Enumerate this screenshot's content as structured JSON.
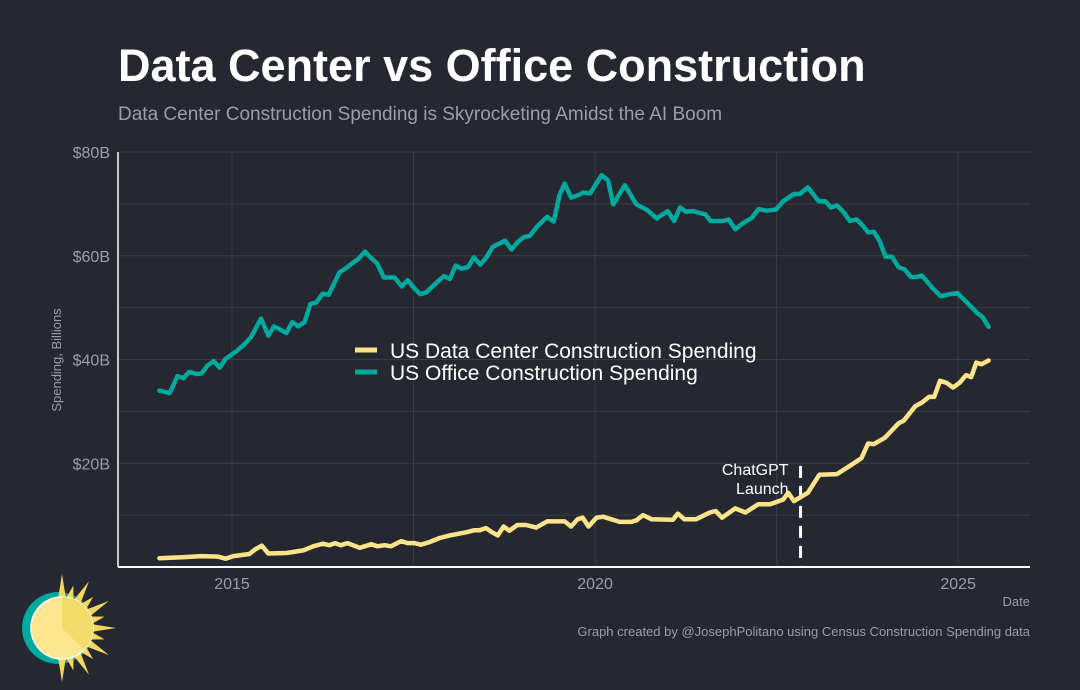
{
  "title": "Data Center vs Office Construction",
  "subtitle": "Data Center Construction Spending is Skyrocketing Amidst the AI Boom",
  "caption": "Graph created by @JosephPolitano using Census Construction Spending data",
  "colors": {
    "background": "#252830",
    "data_center": "#fde38a",
    "office": "#00a99d",
    "grid": "#3a3d46"
  },
  "chart_data": {
    "type": "line",
    "title": "Data Center vs Office Construction",
    "xlabel": "Date",
    "ylabel": "Spending, Billions",
    "xlim": [
      2013.43,
      2025.99
    ],
    "ylim": [
      0,
      80
    ],
    "x_ticks": [
      {
        "value": 2015,
        "label": "2015"
      },
      {
        "value": 2020,
        "label": "2020"
      },
      {
        "value": 2025,
        "label": "2025"
      }
    ],
    "y_ticks": [
      {
        "value": 20,
        "label": "$20B"
      },
      {
        "value": 40,
        "label": "$40B"
      },
      {
        "value": 60,
        "label": "$60B"
      },
      {
        "value": 80,
        "label": "$80B"
      }
    ],
    "grid": true,
    "legend_placement": "center",
    "series": [
      {
        "name": "US Data Center Construction Spending",
        "color": "#fde38a",
        "points": [
          [
            2014.0,
            1.7
          ],
          [
            2014.35,
            1.9
          ],
          [
            2014.58,
            2.1
          ],
          [
            2014.81,
            2.0
          ],
          [
            2014.91,
            1.6
          ],
          [
            2015.02,
            2.1
          ],
          [
            2015.24,
            2.5
          ],
          [
            2015.32,
            3.4
          ],
          [
            2015.41,
            4.1
          ],
          [
            2015.5,
            2.6
          ],
          [
            2015.75,
            2.7
          ],
          [
            2015.98,
            3.2
          ],
          [
            2016.12,
            4.0
          ],
          [
            2016.25,
            4.5
          ],
          [
            2016.34,
            4.2
          ],
          [
            2016.42,
            4.6
          ],
          [
            2016.5,
            4.2
          ],
          [
            2016.59,
            4.6
          ],
          [
            2016.76,
            3.7
          ],
          [
            2016.92,
            4.4
          ],
          [
            2017.0,
            4.0
          ],
          [
            2017.1,
            4.2
          ],
          [
            2017.19,
            4.0
          ],
          [
            2017.33,
            5.0
          ],
          [
            2017.42,
            4.6
          ],
          [
            2017.51,
            4.6
          ],
          [
            2017.6,
            4.3
          ],
          [
            2017.72,
            4.8
          ],
          [
            2017.86,
            5.6
          ],
          [
            2018.0,
            6.1
          ],
          [
            2018.23,
            6.7
          ],
          [
            2018.34,
            7.1
          ],
          [
            2018.41,
            7.1
          ],
          [
            2018.5,
            7.5
          ],
          [
            2018.58,
            6.7
          ],
          [
            2018.66,
            6.1
          ],
          [
            2018.74,
            7.8
          ],
          [
            2018.82,
            7.0
          ],
          [
            2018.93,
            8.1
          ],
          [
            2019.05,
            8.1
          ],
          [
            2019.19,
            7.6
          ],
          [
            2019.34,
            8.8
          ],
          [
            2019.58,
            8.8
          ],
          [
            2019.67,
            7.8
          ],
          [
            2019.76,
            9.2
          ],
          [
            2019.83,
            9.5
          ],
          [
            2019.91,
            7.8
          ],
          [
            2020.02,
            9.5
          ],
          [
            2020.11,
            9.7
          ],
          [
            2020.34,
            8.7
          ],
          [
            2020.5,
            8.7
          ],
          [
            2020.57,
            9.0
          ],
          [
            2020.66,
            10.0
          ],
          [
            2020.78,
            9.2
          ],
          [
            2021.07,
            9.1
          ],
          [
            2021.14,
            10.3
          ],
          [
            2021.23,
            9.2
          ],
          [
            2021.39,
            9.2
          ],
          [
            2021.58,
            10.5
          ],
          [
            2021.66,
            10.8
          ],
          [
            2021.75,
            9.5
          ],
          [
            2021.93,
            11.3
          ],
          [
            2022.07,
            10.5
          ],
          [
            2022.25,
            12.1
          ],
          [
            2022.41,
            12.1
          ],
          [
            2022.59,
            13.0
          ],
          [
            2022.66,
            14.3
          ],
          [
            2022.74,
            12.7
          ],
          [
            2022.93,
            14.3
          ],
          [
            2023.09,
            17.8
          ],
          [
            2023.33,
            17.9
          ],
          [
            2023.51,
            19.5
          ],
          [
            2023.67,
            21.0
          ],
          [
            2023.76,
            23.8
          ],
          [
            2023.84,
            23.7
          ],
          [
            2023.99,
            24.9
          ],
          [
            2024.18,
            27.7
          ],
          [
            2024.25,
            28.2
          ],
          [
            2024.41,
            31.0
          ],
          [
            2024.5,
            31.7
          ],
          [
            2024.6,
            32.8
          ],
          [
            2024.67,
            32.8
          ],
          [
            2024.75,
            35.9
          ],
          [
            2024.84,
            35.5
          ],
          [
            2024.93,
            34.6
          ],
          [
            2025.02,
            35.5
          ],
          [
            2025.11,
            37.0
          ],
          [
            2025.18,
            36.6
          ],
          [
            2025.25,
            39.4
          ],
          [
            2025.32,
            39.1
          ],
          [
            2025.42,
            39.8
          ]
        ]
      },
      {
        "name": "US Office Construction Spending",
        "color": "#00a99d",
        "points": [
          [
            2014.0,
            34.0
          ],
          [
            2014.14,
            33.5
          ],
          [
            2014.25,
            36.8
          ],
          [
            2014.33,
            36.4
          ],
          [
            2014.41,
            37.6
          ],
          [
            2014.51,
            37.2
          ],
          [
            2014.58,
            37.3
          ],
          [
            2014.66,
            38.8
          ],
          [
            2014.75,
            39.7
          ],
          [
            2014.83,
            38.4
          ],
          [
            2014.91,
            40.1
          ],
          [
            2015.06,
            41.6
          ],
          [
            2015.17,
            42.9
          ],
          [
            2015.26,
            44.3
          ],
          [
            2015.4,
            47.9
          ],
          [
            2015.5,
            44.6
          ],
          [
            2015.58,
            46.4
          ],
          [
            2015.75,
            45.1
          ],
          [
            2015.83,
            47.2
          ],
          [
            2015.91,
            46.4
          ],
          [
            2016.0,
            47.2
          ],
          [
            2016.08,
            50.7
          ],
          [
            2016.16,
            51.0
          ],
          [
            2016.25,
            52.7
          ],
          [
            2016.33,
            52.5
          ],
          [
            2016.48,
            56.8
          ],
          [
            2016.57,
            57.6
          ],
          [
            2016.67,
            58.7
          ],
          [
            2016.74,
            59.4
          ],
          [
            2016.83,
            60.8
          ],
          [
            2016.92,
            59.5
          ],
          [
            2017.0,
            58.5
          ],
          [
            2017.09,
            55.8
          ],
          [
            2017.24,
            55.8
          ],
          [
            2017.34,
            54.1
          ],
          [
            2017.42,
            55.3
          ],
          [
            2017.5,
            53.9
          ],
          [
            2017.59,
            52.6
          ],
          [
            2017.67,
            52.9
          ],
          [
            2017.84,
            55.1
          ],
          [
            2017.92,
            56.1
          ],
          [
            2018.0,
            55.5
          ],
          [
            2018.08,
            58.1
          ],
          [
            2018.16,
            57.5
          ],
          [
            2018.25,
            57.8
          ],
          [
            2018.33,
            59.7
          ],
          [
            2018.42,
            58.3
          ],
          [
            2018.5,
            59.6
          ],
          [
            2018.59,
            61.7
          ],
          [
            2018.76,
            62.9
          ],
          [
            2018.85,
            61.2
          ],
          [
            2018.93,
            62.6
          ],
          [
            2019.02,
            63.6
          ],
          [
            2019.1,
            63.8
          ],
          [
            2019.2,
            65.6
          ],
          [
            2019.34,
            67.5
          ],
          [
            2019.43,
            66.6
          ],
          [
            2019.51,
            71.7
          ],
          [
            2019.58,
            73.9
          ],
          [
            2019.67,
            71.2
          ],
          [
            2019.77,
            71.7
          ],
          [
            2019.84,
            72.2
          ],
          [
            2019.93,
            72.0
          ],
          [
            2020.09,
            75.5
          ],
          [
            2020.18,
            74.5
          ],
          [
            2020.25,
            69.9
          ],
          [
            2020.41,
            73.6
          ],
          [
            2020.57,
            69.9
          ],
          [
            2020.71,
            68.9
          ],
          [
            2020.85,
            67.2
          ],
          [
            2021.0,
            68.6
          ],
          [
            2021.09,
            66.7
          ],
          [
            2021.17,
            69.3
          ],
          [
            2021.25,
            68.5
          ],
          [
            2021.35,
            68.6
          ],
          [
            2021.45,
            68.2
          ],
          [
            2021.52,
            68.0
          ],
          [
            2021.59,
            66.7
          ],
          [
            2021.77,
            66.7
          ],
          [
            2021.84,
            67.0
          ],
          [
            2021.93,
            65.1
          ],
          [
            2022.05,
            66.4
          ],
          [
            2022.16,
            67.3
          ],
          [
            2022.25,
            69.0
          ],
          [
            2022.36,
            68.7
          ],
          [
            2022.49,
            68.9
          ],
          [
            2022.59,
            70.5
          ],
          [
            2022.74,
            71.9
          ],
          [
            2022.82,
            71.9
          ],
          [
            2022.93,
            73.2
          ],
          [
            2023.08,
            70.5
          ],
          [
            2023.17,
            70.5
          ],
          [
            2023.25,
            69.3
          ],
          [
            2023.33,
            69.7
          ],
          [
            2023.41,
            68.6
          ],
          [
            2023.51,
            66.7
          ],
          [
            2023.6,
            67.0
          ],
          [
            2023.68,
            65.9
          ],
          [
            2023.76,
            64.5
          ],
          [
            2023.84,
            64.6
          ],
          [
            2023.92,
            62.8
          ],
          [
            2024.0,
            59.8
          ],
          [
            2024.09,
            59.8
          ],
          [
            2024.18,
            57.8
          ],
          [
            2024.26,
            57.4
          ],
          [
            2024.35,
            55.9
          ],
          [
            2024.43,
            55.9
          ],
          [
            2024.5,
            56.2
          ],
          [
            2024.64,
            53.9
          ],
          [
            2024.76,
            52.2
          ],
          [
            2024.89,
            52.6
          ],
          [
            2024.99,
            52.8
          ],
          [
            2025.07,
            51.7
          ],
          [
            2025.17,
            50.3
          ],
          [
            2025.26,
            49.0
          ],
          [
            2025.34,
            48.1
          ],
          [
            2025.42,
            46.3
          ]
        ]
      }
    ],
    "annotations": [
      {
        "x": 2022.83,
        "label_line1": "ChatGPT",
        "label_line2": "Launch",
        "style": "dashed-vertical"
      }
    ]
  }
}
